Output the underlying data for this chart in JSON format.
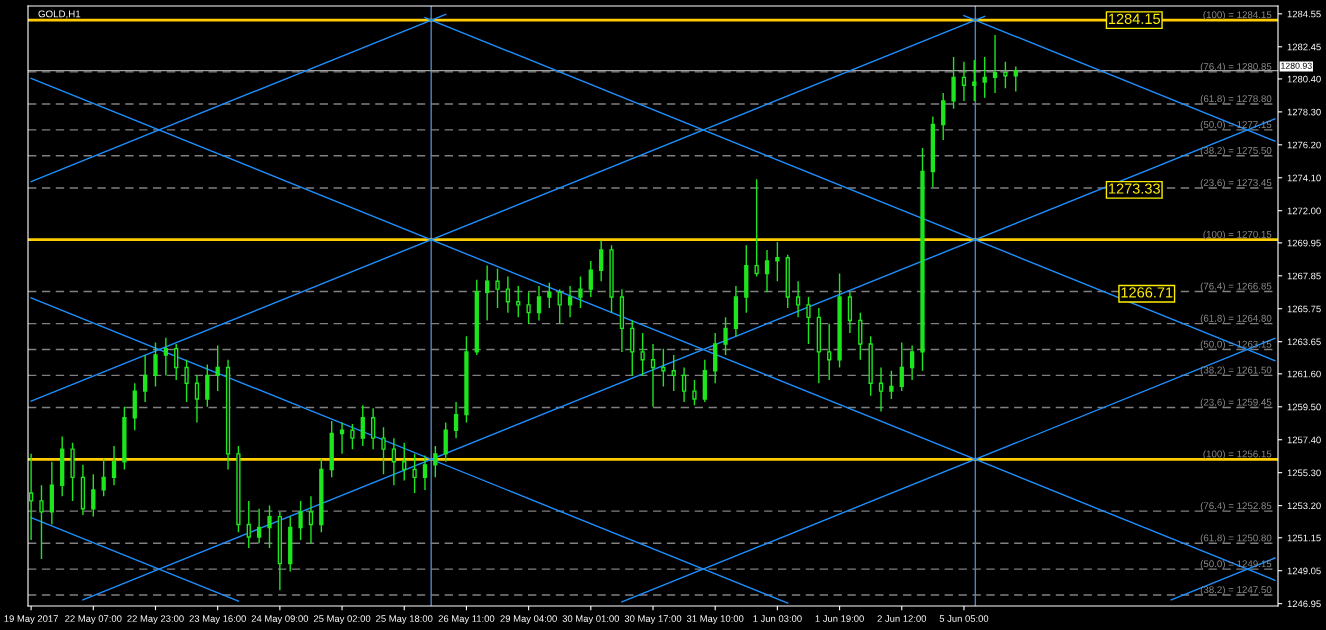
{
  "chart_data": {
    "type": "candlestick",
    "title": "GOLD,H1",
    "categories": [
      "19 May 2017",
      null,
      null,
      null,
      null,
      null,
      "22 May 07:00",
      null,
      null,
      null,
      null,
      null,
      "22 May 23:00",
      null,
      null,
      null,
      null,
      null,
      "23 May 16:00",
      null,
      null,
      null,
      null,
      null,
      "24 May 09:00",
      null,
      null,
      null,
      null,
      null,
      "25 May 02:00",
      null,
      null,
      null,
      null,
      null,
      "25 May 18:00",
      null,
      null,
      null,
      null,
      null,
      "26 May 11:00",
      null,
      null,
      null,
      null,
      null,
      "29 May 04:00",
      null,
      null,
      null,
      null,
      null,
      "30 May 01:00",
      null,
      null,
      null,
      null,
      null,
      "30 May 17:00",
      null,
      null,
      null,
      null,
      null,
      "31 May 10:00",
      null,
      null,
      null,
      null,
      null,
      "1 Jun 03:00",
      null,
      null,
      null,
      null,
      null,
      "1 Jun 19:00",
      null,
      null,
      null,
      null,
      null,
      "2 Jun 12:00",
      null,
      null,
      null,
      null,
      null,
      "5 Jun 05:00",
      null,
      null,
      null,
      null,
      null,
      null,
      null,
      null,
      null,
      null,
      null,
      null,
      null,
      null,
      null,
      null,
      null,
      null,
      null,
      null,
      null,
      null,
      null,
      null,
      null,
      null,
      null,
      null,
      null,
      null
    ],
    "series": [
      {
        "color": "#1ee61e",
        "ohlc": [
          [
            1254.0,
            1256.5,
            1251.0,
            1253.5
          ],
          [
            1253.5,
            1254.5,
            1249.8,
            1252.8
          ],
          [
            1252.8,
            1256.0,
            1252.0,
            1254.5
          ],
          [
            1254.5,
            1257.6,
            1253.8,
            1256.8
          ],
          [
            1256.8,
            1257.2,
            1253.5,
            1255.0
          ],
          [
            1255.0,
            1255.8,
            1252.6,
            1253.0
          ],
          [
            1253.0,
            1255.2,
            1252.5,
            1254.2
          ],
          [
            1254.2,
            1256.2,
            1253.8,
            1255.0
          ],
          [
            1255.0,
            1257.0,
            1254.5,
            1256.0
          ],
          [
            1256.0,
            1259.5,
            1255.5,
            1258.8
          ],
          [
            1258.8,
            1261.0,
            1258.0,
            1260.5
          ],
          [
            1260.5,
            1262.8,
            1259.8,
            1261.5
          ],
          [
            1261.5,
            1263.6,
            1260.8,
            1262.8
          ],
          [
            1262.8,
            1263.9,
            1261.5,
            1263.2
          ],
          [
            1263.2,
            1263.5,
            1261.2,
            1262.0
          ],
          [
            1262.0,
            1262.5,
            1259.8,
            1261.0
          ],
          [
            1261.0,
            1261.5,
            1258.5,
            1260.0
          ],
          [
            1260.0,
            1262.2,
            1259.5,
            1261.5
          ],
          [
            1261.5,
            1263.4,
            1260.5,
            1262.0
          ],
          [
            1262.0,
            1262.5,
            1255.5,
            1256.5
          ],
          [
            1256.5,
            1257.0,
            1251.5,
            1252.0
          ],
          [
            1252.0,
            1253.5,
            1250.5,
            1251.2
          ],
          [
            1251.2,
            1253.0,
            1250.8,
            1251.8
          ],
          [
            1251.8,
            1253.2,
            1250.5,
            1252.5
          ],
          [
            1252.5,
            1252.8,
            1247.8,
            1249.5
          ],
          [
            1249.5,
            1252.5,
            1249.0,
            1251.8
          ],
          [
            1251.8,
            1253.5,
            1251.0,
            1252.8
          ],
          [
            1252.8,
            1253.8,
            1250.8,
            1252.0
          ],
          [
            1252.0,
            1256.2,
            1251.5,
            1255.5
          ],
          [
            1255.5,
            1258.6,
            1255.0,
            1257.8
          ],
          [
            1257.8,
            1258.5,
            1256.5,
            1258.0
          ],
          [
            1258.0,
            1258.4,
            1256.8,
            1257.5
          ],
          [
            1257.5,
            1259.6,
            1257.0,
            1258.8
          ],
          [
            1258.8,
            1259.4,
            1256.8,
            1257.5
          ],
          [
            1257.5,
            1258.2,
            1255.2,
            1256.8
          ],
          [
            1256.8,
            1257.5,
            1254.5,
            1256.0
          ],
          [
            1256.0,
            1257.2,
            1254.8,
            1255.5
          ],
          [
            1255.5,
            1256.5,
            1254.0,
            1255.0
          ],
          [
            1255.0,
            1256.4,
            1254.2,
            1255.8
          ],
          [
            1255.8,
            1257.0,
            1255.0,
            1256.5
          ],
          [
            1256.5,
            1258.5,
            1256.0,
            1258.0
          ],
          [
            1258.0,
            1259.8,
            1257.5,
            1259.0
          ],
          [
            1259.0,
            1264.0,
            1258.5,
            1263.0
          ],
          [
            1263.0,
            1267.6,
            1262.8,
            1266.8
          ],
          [
            1266.8,
            1268.5,
            1265.0,
            1267.5
          ],
          [
            1267.5,
            1268.3,
            1265.8,
            1267.0
          ],
          [
            1267.0,
            1267.8,
            1265.5,
            1266.2
          ],
          [
            1266.2,
            1267.2,
            1265.2,
            1266.0
          ],
          [
            1266.0,
            1266.8,
            1264.8,
            1265.5
          ],
          [
            1265.5,
            1267.2,
            1265.0,
            1266.5
          ],
          [
            1266.5,
            1267.4,
            1265.8,
            1266.8
          ],
          [
            1266.8,
            1267.0,
            1264.8,
            1266.0
          ],
          [
            1266.0,
            1267.2,
            1265.2,
            1266.5
          ],
          [
            1266.5,
            1267.8,
            1265.8,
            1267.0
          ],
          [
            1267.0,
            1268.8,
            1266.5,
            1268.2
          ],
          [
            1268.2,
            1270.1,
            1267.5,
            1269.5
          ],
          [
            1269.5,
            1269.8,
            1265.5,
            1266.5
          ],
          [
            1266.5,
            1267.0,
            1263.0,
            1264.5
          ],
          [
            1264.5,
            1265.0,
            1261.5,
            1263.0
          ],
          [
            1263.0,
            1264.2,
            1261.5,
            1262.5
          ],
          [
            1262.5,
            1263.5,
            1259.5,
            1262.0
          ],
          [
            1262.0,
            1263.2,
            1260.8,
            1261.8
          ],
          [
            1261.8,
            1262.8,
            1260.5,
            1261.5
          ],
          [
            1261.5,
            1262.0,
            1259.8,
            1260.5
          ],
          [
            1260.5,
            1261.2,
            1259.6,
            1260.0
          ],
          [
            1260.0,
            1262.5,
            1259.8,
            1261.8
          ],
          [
            1261.8,
            1264.2,
            1261.0,
            1263.5
          ],
          [
            1263.5,
            1265.2,
            1262.8,
            1264.5
          ],
          [
            1264.5,
            1267.2,
            1264.0,
            1266.5
          ],
          [
            1266.5,
            1269.8,
            1265.5,
            1268.5
          ],
          [
            1268.5,
            1274.0,
            1267.8,
            1268.0
          ],
          [
            1268.0,
            1269.5,
            1266.8,
            1268.8
          ],
          [
            1268.8,
            1270.0,
            1267.5,
            1269.0
          ],
          [
            1269.0,
            1269.2,
            1265.8,
            1266.5
          ],
          [
            1266.5,
            1267.5,
            1265.2,
            1266.0
          ],
          [
            1266.0,
            1266.5,
            1263.5,
            1265.2
          ],
          [
            1265.2,
            1265.8,
            1261.0,
            1263.0
          ],
          [
            1263.0,
            1264.8,
            1261.2,
            1262.5
          ],
          [
            1262.5,
            1268.0,
            1262.0,
            1266.5
          ],
          [
            1266.5,
            1266.8,
            1264.2,
            1265.0
          ],
          [
            1265.0,
            1265.5,
            1262.5,
            1263.5
          ],
          [
            1263.5,
            1264.0,
            1260.2,
            1261.0
          ],
          [
            1261.0,
            1262.0,
            1259.2,
            1260.5
          ],
          [
            1260.5,
            1261.8,
            1260.0,
            1260.8
          ],
          [
            1260.8,
            1263.6,
            1260.5,
            1262.0
          ],
          [
            1262.0,
            1263.4,
            1261.2,
            1263.0
          ],
          [
            1263.0,
            1276.0,
            1261.8,
            1274.5
          ],
          [
            1274.5,
            1278.0,
            1273.5,
            1277.5
          ],
          [
            1277.5,
            1279.5,
            1276.5,
            1279.0
          ],
          [
            1279.0,
            1281.8,
            1278.5,
            1280.5
          ],
          [
            1280.5,
            1281.5,
            1279.0,
            1280.0
          ],
          [
            1280.0,
            1281.6,
            1279.0,
            1280.2
          ],
          [
            1280.2,
            1281.8,
            1279.2,
            1280.5
          ],
          [
            1280.5,
            1283.2,
            1279.5,
            1280.8
          ],
          [
            1280.8,
            1281.5,
            1279.8,
            1280.6
          ],
          [
            1280.6,
            1281.2,
            1279.6,
            1280.93
          ],
          null,
          null,
          null,
          null,
          null,
          null,
          null,
          null,
          null,
          null,
          null,
          null,
          null,
          null,
          null,
          null,
          null,
          null,
          null,
          null,
          null,
          null,
          null,
          null,
          null
        ]
      },
      {
        "type": "line",
        "color": "#1e90ff",
        "values": [
          1273.86,
          null,
          null,
          null,
          null,
          null,
          null,
          null,
          null,
          null,
          null,
          null,
          null,
          null,
          null,
          null,
          null,
          null,
          null,
          null,
          null,
          null,
          null,
          null,
          null,
          null,
          null,
          null,
          null,
          null,
          null,
          null,
          null,
          null,
          null,
          null,
          null,
          null,
          null,
          null,
          1284.52,
          null,
          null,
          null,
          null,
          null,
          null,
          null,
          null,
          null,
          null,
          null,
          null,
          null,
          null,
          null,
          null,
          null,
          null,
          null,
          null,
          null,
          null,
          null,
          null,
          null,
          null,
          null,
          null,
          null,
          null,
          null,
          null,
          null,
          null,
          null,
          null,
          null,
          null,
          null,
          null,
          null,
          null,
          null,
          null,
          null,
          null,
          null,
          null,
          null,
          null,
          null,
          null,
          null,
          null,
          null,
          null,
          null,
          null,
          null,
          null,
          null,
          null,
          null,
          null,
          null,
          null,
          null,
          null,
          null,
          null,
          null,
          null,
          null,
          null,
          null,
          null,
          null,
          null,
          null,
          null
        ]
      },
      {
        "type": "line",
        "color": "#1e90ff",
        "values": [
          1259.86,
          null,
          null,
          null,
          null,
          null,
          null,
          null,
          null,
          null,
          null,
          null,
          null,
          null,
          null,
          null,
          null,
          null,
          null,
          null,
          null,
          null,
          null,
          null,
          null,
          null,
          null,
          null,
          null,
          null,
          null,
          null,
          null,
          null,
          null,
          null,
          null,
          null,
          null,
          null,
          null,
          null,
          null,
          null,
          null,
          null,
          null,
          null,
          null,
          null,
          null,
          null,
          null,
          null,
          null,
          null,
          null,
          null,
          null,
          null,
          null,
          null,
          null,
          null,
          null,
          null,
          null,
          null,
          null,
          null,
          null,
          null,
          null,
          null,
          null,
          null,
          null,
          null,
          null,
          null,
          null,
          null,
          null,
          null,
          null,
          null,
          null,
          null,
          null,
          null,
          null,
          null,
          1284.39,
          null,
          null,
          null,
          null,
          null,
          null,
          null,
          null,
          null,
          null,
          null,
          null,
          null,
          null,
          null,
          null,
          null,
          null,
          null,
          null,
          null,
          null,
          null,
          null,
          null,
          null,
          null,
          null
        ]
      },
      {
        "type": "line",
        "color": "#1e90ff",
        "values": [
          null,
          null,
          null,
          null,
          null,
          1247.19,
          null,
          null,
          null,
          null,
          null,
          null,
          null,
          null,
          null,
          null,
          null,
          null,
          null,
          null,
          null,
          null,
          null,
          null,
          null,
          null,
          null,
          null,
          null,
          null,
          null,
          null,
          null,
          null,
          null,
          null,
          null,
          null,
          null,
          null,
          null,
          null,
          null,
          null,
          null,
          null,
          null,
          null,
          null,
          null,
          null,
          null,
          null,
          null,
          null,
          null,
          null,
          null,
          null,
          null,
          null,
          null,
          null,
          null,
          null,
          null,
          null,
          null,
          null,
          null,
          null,
          null,
          null,
          null,
          null,
          null,
          null,
          null,
          null,
          null,
          null,
          null,
          null,
          null,
          null,
          null,
          null,
          null,
          null,
          null,
          null,
          null,
          null,
          null,
          null,
          null,
          null,
          null,
          null,
          null,
          null,
          null,
          null,
          null,
          null,
          null,
          null,
          null,
          null,
          null,
          null,
          null,
          null,
          null,
          null,
          null,
          null,
          null,
          null,
          null,
          1277.86
        ]
      },
      {
        "type": "line",
        "color": "#1e90ff",
        "values": [
          null,
          null,
          null,
          null,
          null,
          null,
          null,
          null,
          null,
          null,
          null,
          null,
          null,
          null,
          null,
          null,
          null,
          null,
          null,
          null,
          null,
          null,
          null,
          null,
          null,
          null,
          null,
          null,
          null,
          null,
          null,
          null,
          null,
          null,
          null,
          null,
          null,
          null,
          null,
          null,
          null,
          null,
          null,
          null,
          null,
          null,
          null,
          null,
          null,
          null,
          null,
          null,
          null,
          null,
          null,
          null,
          null,
          1247.06,
          null,
          null,
          null,
          null,
          null,
          null,
          null,
          null,
          null,
          null,
          null,
          null,
          null,
          null,
          null,
          null,
          null,
          null,
          null,
          null,
          null,
          null,
          null,
          null,
          null,
          null,
          null,
          null,
          null,
          null,
          null,
          null,
          null,
          null,
          null,
          null,
          null,
          null,
          null,
          null,
          null,
          null,
          null,
          null,
          null,
          null,
          null,
          null,
          null,
          null,
          null,
          null,
          null,
          null,
          null,
          null,
          null,
          null,
          null,
          null,
          null,
          null,
          1263.86
        ]
      },
      {
        "type": "line",
        "color": "#1e90ff",
        "values": [
          null,
          null,
          null,
          null,
          null,
          null,
          null,
          null,
          null,
          null,
          null,
          null,
          null,
          null,
          null,
          null,
          null,
          null,
          null,
          null,
          null,
          null,
          null,
          null,
          null,
          null,
          null,
          null,
          null,
          null,
          null,
          null,
          null,
          null,
          null,
          null,
          null,
          null,
          null,
          null,
          null,
          null,
          null,
          null,
          null,
          null,
          null,
          null,
          null,
          null,
          null,
          null,
          null,
          null,
          null,
          null,
          null,
          null,
          null,
          null,
          null,
          null,
          null,
          null,
          null,
          null,
          null,
          null,
          null,
          null,
          null,
          null,
          null,
          null,
          null,
          null,
          null,
          null,
          null,
          null,
          null,
          null,
          null,
          null,
          null,
          null,
          null,
          null,
          null,
          null,
          null,
          null,
          null,
          null,
          null,
          null,
          null,
          null,
          null,
          null,
          null,
          null,
          null,
          null,
          null,
          null,
          null,
          null,
          null,
          null,
          1247.19,
          null,
          null,
          null,
          null,
          null,
          null,
          null,
          null,
          null,
          1249.86
        ]
      },
      {
        "type": "line",
        "color": "#1e90ff",
        "values": [
          1280.44,
          null,
          null,
          null,
          null,
          null,
          null,
          null,
          null,
          null,
          null,
          null,
          null,
          null,
          null,
          null,
          null,
          null,
          null,
          null,
          null,
          null,
          null,
          null,
          null,
          null,
          null,
          null,
          null,
          null,
          null,
          null,
          null,
          null,
          null,
          null,
          null,
          null,
          null,
          null,
          null,
          null,
          null,
          null,
          null,
          null,
          null,
          null,
          null,
          null,
          null,
          null,
          null,
          null,
          null,
          null,
          null,
          null,
          null,
          null,
          null,
          null,
          null,
          null,
          null,
          null,
          null,
          null,
          null,
          null,
          null,
          null,
          null,
          null,
          null,
          null,
          null,
          null,
          null,
          null,
          null,
          null,
          null,
          null,
          null,
          null,
          null,
          null,
          null,
          null,
          null,
          null,
          null,
          null,
          null,
          null,
          null,
          null,
          null,
          null,
          null,
          null,
          null,
          null,
          null,
          null,
          null,
          null,
          null,
          null,
          null,
          null,
          null,
          null,
          null,
          null,
          null,
          null,
          null,
          null,
          1248.44
        ]
      },
      {
        "type": "line",
        "color": "#1e90ff",
        "values": [
          null,
          null,
          null,
          null,
          null,
          null,
          null,
          null,
          null,
          null,
          null,
          null,
          null,
          null,
          null,
          null,
          null,
          null,
          null,
          null,
          null,
          null,
          null,
          null,
          null,
          null,
          null,
          null,
          null,
          null,
          null,
          null,
          null,
          null,
          null,
          null,
          null,
          null,
          1284.31,
          null,
          null,
          null,
          null,
          null,
          null,
          null,
          null,
          null,
          null,
          null,
          null,
          null,
          null,
          null,
          null,
          null,
          null,
          null,
          null,
          null,
          null,
          null,
          null,
          null,
          null,
          null,
          null,
          null,
          null,
          null,
          null,
          null,
          null,
          null,
          null,
          null,
          null,
          null,
          null,
          null,
          null,
          null,
          null,
          null,
          null,
          null,
          null,
          null,
          null,
          null,
          null,
          null,
          null,
          null,
          null,
          null,
          null,
          null,
          null,
          null,
          null,
          null,
          null,
          null,
          null,
          null,
          null,
          null,
          null,
          null,
          null,
          null,
          null,
          null,
          null,
          null,
          null,
          null,
          null,
          null,
          1262.44
        ]
      },
      {
        "type": "line",
        "color": "#1e90ff",
        "values": [
          null,
          null,
          null,
          null,
          null,
          null,
          null,
          null,
          null,
          null,
          null,
          null,
          null,
          null,
          null,
          null,
          null,
          null,
          null,
          null,
          null,
          null,
          null,
          null,
          null,
          null,
          null,
          null,
          null,
          null,
          null,
          null,
          null,
          null,
          null,
          null,
          null,
          null,
          null,
          null,
          null,
          null,
          null,
          null,
          null,
          null,
          null,
          null,
          null,
          null,
          null,
          null,
          null,
          null,
          null,
          null,
          null,
          null,
          null,
          null,
          null,
          null,
          null,
          null,
          null,
          null,
          null,
          null,
          null,
          null,
          null,
          null,
          null,
          null,
          null,
          null,
          null,
          null,
          null,
          null,
          null,
          null,
          null,
          null,
          null,
          null,
          null,
          null,
          null,
          null,
          1284.44,
          null,
          null,
          null,
          null,
          null,
          null,
          null,
          null,
          null,
          null,
          null,
          null,
          null,
          null,
          null,
          null,
          null,
          null,
          null,
          null,
          null,
          null,
          null,
          null,
          null,
          null,
          null,
          null,
          null,
          1276.44
        ]
      },
      {
        "type": "line",
        "color": "#1e90ff",
        "values": [
          1266.44,
          null,
          null,
          null,
          null,
          null,
          null,
          null,
          null,
          null,
          null,
          null,
          null,
          null,
          null,
          null,
          null,
          null,
          null,
          null,
          null,
          null,
          null,
          null,
          null,
          null,
          null,
          null,
          null,
          null,
          null,
          null,
          null,
          null,
          null,
          null,
          null,
          null,
          null,
          null,
          null,
          null,
          null,
          null,
          null,
          null,
          null,
          null,
          null,
          null,
          null,
          null,
          null,
          null,
          null,
          null,
          null,
          null,
          null,
          null,
          null,
          null,
          null,
          null,
          null,
          null,
          null,
          null,
          null,
          null,
          null,
          null,
          null,
          1246.98,
          null,
          null,
          null,
          null,
          null,
          null,
          null,
          null,
          null,
          null,
          null,
          null,
          null,
          null,
          null,
          null,
          null,
          null,
          null,
          null,
          null,
          null,
          null,
          null,
          null,
          null,
          null,
          null,
          null,
          null,
          null,
          null,
          null,
          null,
          null,
          null,
          null,
          null,
          null,
          null,
          null,
          null,
          null,
          null,
          null,
          null,
          null
        ]
      },
      {
        "type": "line",
        "color": "#1e90ff",
        "values": [
          1252.44,
          null,
          null,
          null,
          null,
          null,
          null,
          null,
          null,
          null,
          null,
          null,
          null,
          null,
          null,
          null,
          null,
          null,
          null,
          null,
          1247.11,
          null,
          null,
          null,
          null,
          null,
          null,
          null,
          null,
          null,
          null,
          null,
          null,
          null,
          null,
          null,
          null,
          null,
          null,
          null,
          null,
          null,
          null,
          null,
          null,
          null,
          null,
          null,
          null,
          null,
          null,
          null,
          null,
          null,
          null,
          null,
          null,
          null,
          null,
          null,
          null,
          null,
          null,
          null,
          null,
          null,
          null,
          null,
          null,
          null,
          null,
          null,
          null,
          null,
          null,
          null,
          null,
          null,
          null,
          null,
          null,
          null,
          null,
          null,
          null,
          null,
          null,
          null,
          null,
          null,
          null,
          null,
          null,
          null,
          null,
          null,
          null,
          null,
          null,
          null,
          null,
          null,
          null,
          null,
          null,
          null,
          null,
          null,
          null,
          null,
          null,
          null,
          null,
          null,
          null,
          null,
          null,
          null,
          null,
          null,
          null
        ]
      }
    ],
    "ylim": [
      1246.8,
      1285.05
    ],
    "yticks": [
      1246.95,
      1249.05,
      1251.15,
      {
        "value": 1253.2,
        "label": "1253.20"
      },
      {
        "value": 1255.3,
        "label": "1255.30"
      },
      {
        "value": 1257.4,
        "label": "1257.40"
      },
      {
        "value": 1259.5,
        "label": "1259.50"
      },
      {
        "value": 1261.6,
        "label": "1261.60"
      },
      1263.65,
      1265.75,
      1267.85,
      1269.95,
      {
        "value": 1272.0,
        "label": "1272.00"
      },
      {
        "value": 1274.1,
        "label": "1274.10"
      },
      {
        "value": 1276.2,
        "label": "1276.20"
      },
      {
        "value": 1278.3,
        "label": "1278.30"
      },
      {
        "value": 1280.4,
        "label": "1280.40"
      },
      1282.45,
      1284.55
    ],
    "ref_lines": [
      {
        "axis": "y",
        "value": 1284.15,
        "label": "(100) = 1284.15",
        "color": "#ffcc00",
        "line_style": "solid"
      },
      {
        "axis": "y",
        "value": 1280.85,
        "label": "(76.4) = 1280.85",
        "color": "#808080",
        "line_style": "dashed"
      },
      {
        "axis": "y",
        "value": 1278.8,
        "label": "(61.8) = 1278.80",
        "color": "#808080",
        "line_style": "dashed"
      },
      {
        "axis": "y",
        "value": 1277.15,
        "label": "(50.0) = 1277.15",
        "color": "#808080",
        "line_style": "dashed"
      },
      {
        "axis": "y",
        "value": 1275.5,
        "label": "(38.2) = 1275.50",
        "color": "#808080",
        "line_style": "dashed"
      },
      {
        "axis": "y",
        "value": 1273.45,
        "label": "(23.6) = 1273.45",
        "color": "#808080",
        "line_style": "dashed"
      },
      {
        "axis": "y",
        "value": 1270.15,
        "label": "(100) = 1270.15",
        "color": "#ffcc00",
        "line_style": "solid"
      },
      {
        "axis": "y",
        "value": 1266.85,
        "label": "(76.4) = 1266.85",
        "color": "#808080",
        "line_style": "dashed"
      },
      {
        "axis": "y",
        "value": 1264.8,
        "label": "(61.8) = 1264.80",
        "color": "#808080",
        "line_style": "dashed"
      },
      {
        "axis": "y",
        "value": 1263.15,
        "label": "(50.0) = 1263.15",
        "color": "#808080",
        "line_style": "dashed"
      },
      {
        "axis": "y",
        "value": 1261.5,
        "label": "(38.2) = 1261.50",
        "color": "#808080",
        "line_style": "dashed"
      },
      {
        "axis": "y",
        "value": 1259.45,
        "label": "(23.6) = 1259.45",
        "color": "#808080",
        "line_style": "dashed"
      },
      {
        "axis": "y",
        "value": 1256.15,
        "label": "(100) = 1256.15",
        "color": "#ffcc00",
        "line_style": "solid"
      },
      {
        "axis": "y",
        "value": 1252.85,
        "label": "(76.4) = 1252.85",
        "color": "#808080",
        "line_style": "dashed"
      },
      {
        "axis": "y",
        "value": 1250.8,
        "label": "(61.8) = 1250.80",
        "color": "#808080",
        "line_style": "dashed"
      },
      {
        "axis": "y",
        "value": 1249.15,
        "label": "(50.0) = 1249.15",
        "color": "#808080",
        "line_style": "dashed"
      },
      {
        "axis": "y",
        "value": 1247.5,
        "label": "(38.2) = 1247.50",
        "color": "#808080",
        "line_style": "dashed"
      },
      {
        "axis": "y",
        "value": 1280.93,
        "label": "1280.93",
        "color": "#a0a0a0",
        "line_style": "solid"
      }
    ],
    "annotations": [
      {
        "text": "1284.15",
        "y": 1284.15
      },
      {
        "text": "1273.33",
        "y": 1273.33
      },
      {
        "text": "1266.71",
        "y": 1266.71
      }
    ]
  }
}
